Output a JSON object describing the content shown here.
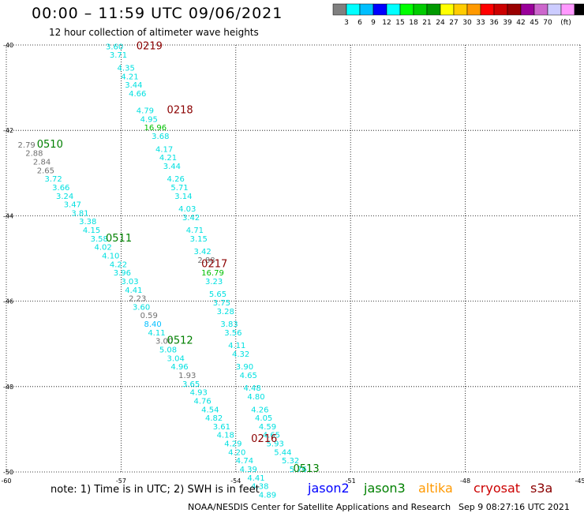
{
  "header": {
    "title": "00:00 – 11:59 UTC 09/06/2021",
    "subtitle": "12 hour collection of altimeter wave heights"
  },
  "colorbar": {
    "swatches": [
      "#808080",
      "#00ffff",
      "#00bfff",
      "#0000ff",
      "#00ffff",
      "#00ff00",
      "#00cc00",
      "#009900",
      "#ffff00",
      "#ffcc00",
      "#ff9900",
      "#ff0000",
      "#cc0000",
      "#990000",
      "#990099",
      "#cc66cc",
      "#ccccff",
      "#ff99ff",
      "#000000"
    ],
    "labels": [
      "3",
      "6",
      "9",
      "12",
      "15",
      "18",
      "21",
      "24",
      "27",
      "30",
      "33",
      "36",
      "39",
      "42",
      "45",
      "70",
      "(ft)"
    ]
  },
  "chart_data": {
    "type": "scatter",
    "title": "00:00 – 11:59 UTC 09/06/2021",
    "subtitle": "12 hour collection of altimeter wave heights",
    "xlim": [
      -60,
      -45
    ],
    "ylim": [
      -50,
      -40
    ],
    "x_ticks": [
      "-60",
      "-57",
      "-54",
      "-51",
      "-48",
      "-45"
    ],
    "y_ticks": [
      "-40",
      "-42",
      "-44",
      "-46",
      "-48",
      "-50"
    ],
    "grid": true,
    "track_labels": [
      {
        "label": "0219",
        "lon": -56.6,
        "lat": -40.1,
        "color": "#8b0000"
      },
      {
        "label": "0218",
        "lon": -55.8,
        "lat": -41.6,
        "color": "#8b0000"
      },
      {
        "label": "0510",
        "lon": -59.2,
        "lat": -42.4,
        "color": "#008000"
      },
      {
        "label": "0511",
        "lon": -57.4,
        "lat": -44.6,
        "color": "#008000"
      },
      {
        "label": "0217",
        "lon": -54.9,
        "lat": -45.2,
        "color": "#8b0000"
      },
      {
        "label": "0512",
        "lon": -55.8,
        "lat": -47.0,
        "color": "#008000"
      },
      {
        "label": "0216",
        "lon": -53.6,
        "lat": -49.3,
        "color": "#8b0000"
      },
      {
        "label": "0513",
        "lon": -52.5,
        "lat": -50.0,
        "color": "#008000"
      }
    ],
    "series": [
      {
        "name": "cryosat",
        "points": [
          {
            "lon": -57.4,
            "lat": -40.1,
            "v": "3.60",
            "c": "#00e0e0"
          },
          {
            "lon": -57.3,
            "lat": -40.3,
            "v": "3.71",
            "c": "#00e0e0"
          },
          {
            "lon": -57.1,
            "lat": -40.6,
            "v": "4.35",
            "c": "#00e0e0"
          },
          {
            "lon": -57.0,
            "lat": -40.8,
            "v": "4.21",
            "c": "#00e0e0"
          },
          {
            "lon": -56.9,
            "lat": -41.0,
            "v": "3.44",
            "c": "#00e0e0"
          },
          {
            "lon": -56.8,
            "lat": -41.2,
            "v": "4.66",
            "c": "#00e0e0"
          },
          {
            "lon": -56.6,
            "lat": -41.6,
            "v": "4.79",
            "c": "#00e0e0"
          },
          {
            "lon": -56.5,
            "lat": -41.8,
            "v": "4.95",
            "c": "#00e0e0"
          },
          {
            "lon": -56.4,
            "lat": -42.0,
            "v": "16.96",
            "c": "#00c000"
          },
          {
            "lon": -56.2,
            "lat": -42.2,
            "v": "3.68",
            "c": "#00e0e0"
          },
          {
            "lon": -56.1,
            "lat": -42.5,
            "v": "4.17",
            "c": "#00e0e0"
          },
          {
            "lon": -56.0,
            "lat": -42.7,
            "v": "4.21",
            "c": "#00e0e0"
          },
          {
            "lon": -55.9,
            "lat": -42.9,
            "v": "3.44",
            "c": "#00e0e0"
          },
          {
            "lon": -55.8,
            "lat": -43.2,
            "v": "4.26",
            "c": "#00e0e0"
          },
          {
            "lon": -55.7,
            "lat": -43.4,
            "v": "5.71",
            "c": "#00e0e0"
          },
          {
            "lon": -55.6,
            "lat": -43.6,
            "v": "3.14",
            "c": "#00e0e0"
          },
          {
            "lon": -55.5,
            "lat": -43.9,
            "v": "4.03",
            "c": "#00e0e0"
          },
          {
            "lon": -55.4,
            "lat": -44.1,
            "v": "3.42",
            "c": "#00e0e0"
          },
          {
            "lon": -55.3,
            "lat": -44.4,
            "v": "4.71",
            "c": "#00e0e0"
          },
          {
            "lon": -55.2,
            "lat": -44.6,
            "v": "3.15",
            "c": "#00e0e0"
          },
          {
            "lon": -55.1,
            "lat": -44.9,
            "v": "3.42",
            "c": "#00e0e0"
          },
          {
            "lon": -55.0,
            "lat": -45.1,
            "v": "2.88",
            "c": "#707070"
          },
          {
            "lon": -54.9,
            "lat": -45.4,
            "v": "16.79",
            "c": "#00c000"
          },
          {
            "lon": -54.8,
            "lat": -45.6,
            "v": "3.23",
            "c": "#00e0e0"
          },
          {
            "lon": -54.7,
            "lat": -45.9,
            "v": "5.65",
            "c": "#00e0e0"
          },
          {
            "lon": -54.6,
            "lat": -46.1,
            "v": "3.75",
            "c": "#00e0e0"
          },
          {
            "lon": -54.5,
            "lat": -46.3,
            "v": "3.28",
            "c": "#00e0e0"
          },
          {
            "lon": -54.4,
            "lat": -46.6,
            "v": "3.83",
            "c": "#00e0e0"
          },
          {
            "lon": -54.3,
            "lat": -46.8,
            "v": "3.56",
            "c": "#00e0e0"
          },
          {
            "lon": -54.2,
            "lat": -47.1,
            "v": "4.11",
            "c": "#00e0e0"
          },
          {
            "lon": -54.1,
            "lat": -47.3,
            "v": "4.32",
            "c": "#00e0e0"
          },
          {
            "lon": -54.0,
            "lat": -47.6,
            "v": "3.90",
            "c": "#00e0e0"
          },
          {
            "lon": -53.9,
            "lat": -47.8,
            "v": "4.65",
            "c": "#00e0e0"
          },
          {
            "lon": -53.8,
            "lat": -48.1,
            "v": "4.48",
            "c": "#00e0e0"
          },
          {
            "lon": -53.7,
            "lat": -48.3,
            "v": "4.80",
            "c": "#00e0e0"
          },
          {
            "lon": -53.6,
            "lat": -48.6,
            "v": "4.26",
            "c": "#00e0e0"
          },
          {
            "lon": -53.5,
            "lat": -48.8,
            "v": "4.05",
            "c": "#00e0e0"
          },
          {
            "lon": -53.4,
            "lat": -49.0,
            "v": "4.59",
            "c": "#00e0e0"
          },
          {
            "lon": -53.3,
            "lat": -49.2,
            "v": "4.65",
            "c": "#00e0e0"
          },
          {
            "lon": -53.2,
            "lat": -49.4,
            "v": "5.93",
            "c": "#00e0e0"
          },
          {
            "lon": -53.0,
            "lat": -49.6,
            "v": "5.44",
            "c": "#00e0e0"
          },
          {
            "lon": -52.8,
            "lat": -49.8,
            "v": "5.32",
            "c": "#00e0e0"
          },
          {
            "lon": -52.6,
            "lat": -50.0,
            "v": "5.76",
            "c": "#00e0e0"
          }
        ]
      },
      {
        "name": "jason3",
        "points": [
          {
            "lon": -59.7,
            "lat": -42.4,
            "v": "2.79",
            "c": "#707070"
          },
          {
            "lon": -59.5,
            "lat": -42.6,
            "v": "2.88",
            "c": "#707070"
          },
          {
            "lon": -59.3,
            "lat": -42.8,
            "v": "2.84",
            "c": "#707070"
          },
          {
            "lon": -59.2,
            "lat": -43.0,
            "v": "2.65",
            "c": "#707070"
          },
          {
            "lon": -59.0,
            "lat": -43.2,
            "v": "3.72",
            "c": "#00e0e0"
          },
          {
            "lon": -58.8,
            "lat": -43.4,
            "v": "3.66",
            "c": "#00e0e0"
          },
          {
            "lon": -58.7,
            "lat": -43.6,
            "v": "3.24",
            "c": "#00e0e0"
          },
          {
            "lon": -58.5,
            "lat": -43.8,
            "v": "3.47",
            "c": "#00e0e0"
          },
          {
            "lon": -58.3,
            "lat": -44.0,
            "v": "3.81",
            "c": "#00e0e0"
          },
          {
            "lon": -58.1,
            "lat": -44.2,
            "v": "3.38",
            "c": "#00e0e0"
          },
          {
            "lon": -58.0,
            "lat": -44.4,
            "v": "4.15",
            "c": "#00e0e0"
          },
          {
            "lon": -57.8,
            "lat": -44.6,
            "v": "3.58",
            "c": "#00e0e0"
          },
          {
            "lon": -57.7,
            "lat": -44.8,
            "v": "4.02",
            "c": "#00e0e0"
          },
          {
            "lon": -57.5,
            "lat": -45.0,
            "v": "4.10",
            "c": "#00e0e0"
          },
          {
            "lon": -57.3,
            "lat": -45.2,
            "v": "4.22",
            "c": "#00e0e0"
          },
          {
            "lon": -57.2,
            "lat": -45.4,
            "v": "3.96",
            "c": "#00e0e0"
          },
          {
            "lon": -57.0,
            "lat": -45.6,
            "v": "3.03",
            "c": "#00e0e0"
          },
          {
            "lon": -56.9,
            "lat": -45.8,
            "v": "4.41",
            "c": "#00e0e0"
          },
          {
            "lon": -56.8,
            "lat": -46.0,
            "v": "2.23",
            "c": "#707070"
          },
          {
            "lon": -56.7,
            "lat": -46.2,
            "v": "3.60",
            "c": "#00e0e0"
          },
          {
            "lon": -56.5,
            "lat": -46.4,
            "v": "0.59",
            "c": "#707070"
          },
          {
            "lon": -56.4,
            "lat": -46.6,
            "v": "8.40",
            "c": "#00bfff"
          },
          {
            "lon": -56.3,
            "lat": -46.8,
            "v": "4.11",
            "c": "#00e0e0"
          },
          {
            "lon": -56.1,
            "lat": -47.0,
            "v": "3.00",
            "c": "#707070"
          },
          {
            "lon": -56.0,
            "lat": -47.2,
            "v": "5.08",
            "c": "#00e0e0"
          },
          {
            "lon": -55.8,
            "lat": -47.4,
            "v": "3.04",
            "c": "#00e0e0"
          },
          {
            "lon": -55.7,
            "lat": -47.6,
            "v": "4.96",
            "c": "#00e0e0"
          },
          {
            "lon": -55.5,
            "lat": -47.8,
            "v": "1.93",
            "c": "#707070"
          },
          {
            "lon": -55.4,
            "lat": -48.0,
            "v": "3.65",
            "c": "#00e0e0"
          },
          {
            "lon": -55.2,
            "lat": -48.2,
            "v": "4.93",
            "c": "#00e0e0"
          },
          {
            "lon": -55.1,
            "lat": -48.4,
            "v": "4.76",
            "c": "#00e0e0"
          },
          {
            "lon": -54.9,
            "lat": -48.6,
            "v": "4.54",
            "c": "#00e0e0"
          },
          {
            "lon": -54.8,
            "lat": -48.8,
            "v": "4.82",
            "c": "#00e0e0"
          },
          {
            "lon": -54.6,
            "lat": -49.0,
            "v": "3.61",
            "c": "#00e0e0"
          },
          {
            "lon": -54.5,
            "lat": -49.2,
            "v": "4.18",
            "c": "#00e0e0"
          },
          {
            "lon": -54.3,
            "lat": -49.4,
            "v": "4.29",
            "c": "#00e0e0"
          },
          {
            "lon": -54.2,
            "lat": -49.6,
            "v": "4.20",
            "c": "#00e0e0"
          },
          {
            "lon": -54.0,
            "lat": -49.8,
            "v": "4.74",
            "c": "#00e0e0"
          },
          {
            "lon": -53.9,
            "lat": -50.0,
            "v": "4.39",
            "c": "#00e0e0"
          },
          {
            "lon": -53.7,
            "lat": -50.2,
            "v": "4.41",
            "c": "#00e0e0"
          },
          {
            "lon": -53.6,
            "lat": -50.4,
            "v": "4.38",
            "c": "#00e0e0"
          },
          {
            "lon": -53.4,
            "lat": -50.6,
            "v": "4.89",
            "c": "#00e0e0"
          }
        ]
      }
    ]
  },
  "footer": {
    "note": "note:  1) Time is in UTC;  2) SWH is in feet",
    "satellites": [
      {
        "name": "jason2",
        "color": "#0000ff"
      },
      {
        "name": "jason3",
        "color": "#008000"
      },
      {
        "name": "altika",
        "color": "#ff9900"
      },
      {
        "name": "cryosat",
        "color": "#cc0000"
      },
      {
        "name": "s3a",
        "color": "#8b0000"
      }
    ],
    "credit": "NOAA/NESDIS Center for Satellite Applications and Research",
    "timestamp": "Sep  9 08:27:16 UTC 2021"
  }
}
